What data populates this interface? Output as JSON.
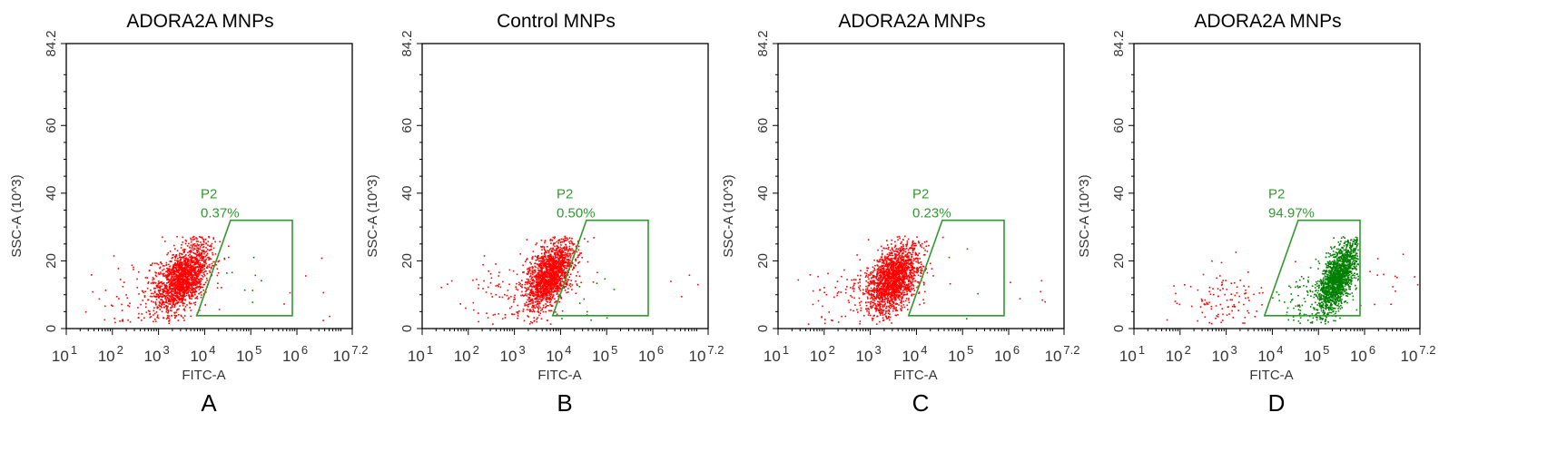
{
  "chart_data": [
    {
      "type": "scatter",
      "panel_label": "A",
      "title": "ADORA2A MNPs",
      "xlabel": "FITC-A",
      "ylabel": "SSC-A (10^3)",
      "xscale": "log",
      "xlim_log10": [
        1,
        7.2
      ],
      "ylim": [
        0,
        84.2
      ],
      "x_ticks": [
        {
          "base": "10",
          "exp": "1"
        },
        {
          "base": "10",
          "exp": "2"
        },
        {
          "base": "10",
          "exp": "3"
        },
        {
          "base": "10",
          "exp": "4"
        },
        {
          "base": "10",
          "exp": "5"
        },
        {
          "base": "10",
          "exp": "6"
        },
        {
          "base": "10",
          "exp": "7.2"
        }
      ],
      "y_ticks": [
        "0",
        "20",
        "40",
        "60",
        "84.2"
      ],
      "gate": {
        "name": "P2",
        "percent": "0.37%",
        "polygon_log10x_y": [
          [
            3.83,
            3.8
          ],
          [
            4.56,
            32
          ],
          [
            5.9,
            32
          ],
          [
            5.9,
            3.8
          ]
        ]
      },
      "populations": [
        {
          "color": "#ff0000",
          "center_log10x": 3.5,
          "center_y": 15,
          "sd_log10x": 0.28,
          "sd_y": 5,
          "corr": 0.45,
          "count": 1600
        },
        {
          "color": "#ff0000",
          "center_log10x": 3.0,
          "center_y": 11,
          "sd_log10x": 0.6,
          "sd_y": 5,
          "corr": 0.3,
          "count": 140
        },
        {
          "color": "#008000",
          "center_log10x": 4.9,
          "center_y": 16,
          "sd_log10x": 0.35,
          "sd_y": 4,
          "corr": 0,
          "count": 9,
          "in_gate": true
        },
        {
          "color": "#ff0000",
          "center_log10x": 6.6,
          "center_y": 14,
          "sd_log10x": 0.35,
          "sd_y": 6,
          "corr": 0,
          "count": 7
        }
      ]
    },
    {
      "type": "scatter",
      "panel_label": "B",
      "title": "Control MNPs",
      "xlabel": "FITC-A",
      "ylabel": "SSC-A (10^3)",
      "xscale": "log",
      "xlim_log10": [
        1,
        7.2
      ],
      "ylim": [
        0,
        84.2
      ],
      "x_ticks": [
        {
          "base": "10",
          "exp": "1"
        },
        {
          "base": "10",
          "exp": "2"
        },
        {
          "base": "10",
          "exp": "3"
        },
        {
          "base": "10",
          "exp": "4"
        },
        {
          "base": "10",
          "exp": "5"
        },
        {
          "base": "10",
          "exp": "6"
        },
        {
          "base": "10",
          "exp": "7.2"
        }
      ],
      "y_ticks": [
        "0",
        "20",
        "40",
        "60",
        "84.2"
      ],
      "gate": {
        "name": "P2",
        "percent": "0.50%",
        "polygon_log10x_y": [
          [
            3.83,
            3.8
          ],
          [
            4.56,
            32
          ],
          [
            5.9,
            32
          ],
          [
            5.9,
            3.8
          ]
        ]
      },
      "populations": [
        {
          "color": "#ff0000",
          "center_log10x": 3.75,
          "center_y": 16,
          "sd_log10x": 0.25,
          "sd_y": 5,
          "corr": 0.5,
          "count": 1600
        },
        {
          "color": "#ff0000",
          "center_log10x": 3.0,
          "center_y": 11,
          "sd_log10x": 0.65,
          "sd_y": 5,
          "corr": 0.3,
          "count": 130
        },
        {
          "color": "#008000",
          "center_log10x": 4.6,
          "center_y": 12,
          "sd_log10x": 0.3,
          "sd_y": 5,
          "corr": 0,
          "count": 10,
          "in_gate": true
        },
        {
          "color": "#ff0000",
          "center_log10x": 6.6,
          "center_y": 10,
          "sd_log10x": 0.3,
          "sd_y": 3,
          "corr": 0,
          "count": 4
        }
      ]
    },
    {
      "type": "scatter",
      "panel_label": "C",
      "title": "ADORA2A MNPs",
      "xlabel": "FITC-A",
      "ylabel": "SSC-A (10^3)",
      "xscale": "log",
      "xlim_log10": [
        1,
        7.2
      ],
      "ylim": [
        0,
        84.2
      ],
      "x_ticks": [
        {
          "base": "10",
          "exp": "1"
        },
        {
          "base": "10",
          "exp": "2"
        },
        {
          "base": "10",
          "exp": "3"
        },
        {
          "base": "10",
          "exp": "4"
        },
        {
          "base": "10",
          "exp": "5"
        },
        {
          "base": "10",
          "exp": "6"
        },
        {
          "base": "10",
          "exp": "7.2"
        }
      ],
      "y_ticks": [
        "0",
        "20",
        "40",
        "60",
        "84.2"
      ],
      "gate": {
        "name": "P2",
        "percent": "0.23%",
        "polygon_log10x_y": [
          [
            3.83,
            3.8
          ],
          [
            4.56,
            32
          ],
          [
            5.9,
            32
          ],
          [
            5.9,
            3.8
          ]
        ]
      },
      "populations": [
        {
          "color": "#ff0000",
          "center_log10x": 3.5,
          "center_y": 15,
          "sd_log10x": 0.28,
          "sd_y": 5,
          "corr": 0.45,
          "count": 1700
        },
        {
          "color": "#ff0000",
          "center_log10x": 2.9,
          "center_y": 11,
          "sd_log10x": 0.65,
          "sd_y": 5,
          "corr": 0.3,
          "count": 150
        },
        {
          "color": "#008000",
          "center_log10x": 5.0,
          "center_y": 10,
          "sd_log10x": 0.3,
          "sd_y": 6,
          "corr": 0,
          "count": 4,
          "in_gate": true
        },
        {
          "color": "#ff0000",
          "center_log10x": 6.6,
          "center_y": 12,
          "sd_log10x": 0.35,
          "sd_y": 6,
          "corr": 0,
          "count": 6
        }
      ]
    },
    {
      "type": "scatter",
      "panel_label": "D",
      "title": "ADORA2A MNPs",
      "xlabel": "FITC-A",
      "ylabel": "SSC-A (10^3)",
      "xscale": "log",
      "xlim_log10": [
        1,
        7.2
      ],
      "ylim": [
        0,
        84.2
      ],
      "x_ticks": [
        {
          "base": "10",
          "exp": "1"
        },
        {
          "base": "10",
          "exp": "2"
        },
        {
          "base": "10",
          "exp": "3"
        },
        {
          "base": "10",
          "exp": "4"
        },
        {
          "base": "10",
          "exp": "5"
        },
        {
          "base": "10",
          "exp": "6"
        },
        {
          "base": "10",
          "exp": "7.2"
        }
      ],
      "y_ticks": [
        "0",
        "20",
        "40",
        "60",
        "84.2"
      ],
      "gate": {
        "name": "P2",
        "percent": "94.97%",
        "polygon_log10x_y": [
          [
            3.83,
            3.8
          ],
          [
            4.56,
            32
          ],
          [
            5.9,
            32
          ],
          [
            5.9,
            3.8
          ]
        ]
      },
      "populations": [
        {
          "color": "#008000",
          "center_log10x": 5.4,
          "center_y": 15,
          "sd_log10x": 0.2,
          "sd_y": 5,
          "corr": 0.6,
          "count": 1500,
          "in_gate": true
        },
        {
          "color": "#008000",
          "center_log10x": 4.9,
          "center_y": 9,
          "sd_log10x": 0.4,
          "sd_y": 4,
          "corr": 0.2,
          "count": 150,
          "in_gate": true
        },
        {
          "color": "#ff0000",
          "center_log10x": 3.0,
          "center_y": 9,
          "sd_log10x": 0.6,
          "sd_y": 5,
          "corr": 0.2,
          "count": 110
        },
        {
          "color": "#ff0000",
          "center_log10x": 6.5,
          "center_y": 16,
          "sd_log10x": 0.35,
          "sd_y": 6,
          "corr": 0,
          "count": 14
        }
      ]
    }
  ]
}
